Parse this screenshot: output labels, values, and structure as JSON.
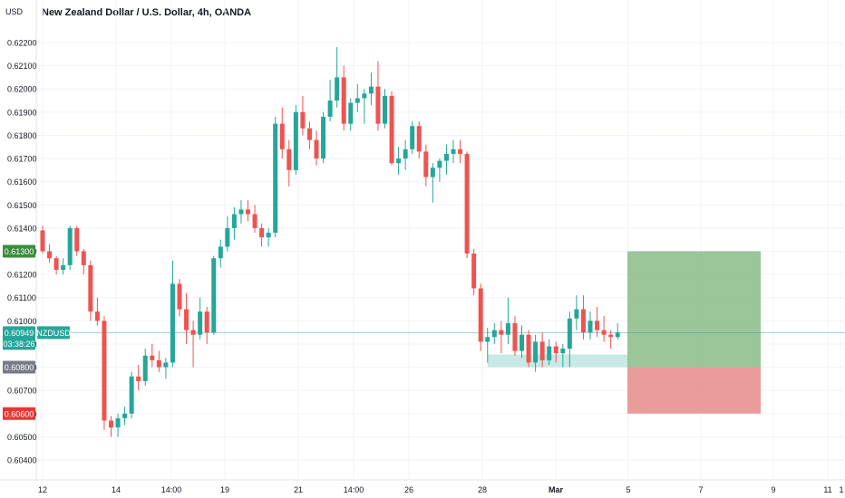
{
  "header": {
    "currency": "USD",
    "title": "New Zealand Dollar / U.S. Dollar, 4h, OANDA"
  },
  "colors": {
    "up": "#26a69a",
    "down": "#ef5350",
    "grid": "#e0e3eb",
    "axis_text": "#131722",
    "profit": "#81b881",
    "loss": "#e58382",
    "demand": "#b2dfdb"
  },
  "price_tags": {
    "target": {
      "label": "0.61300",
      "color": "#388e3c"
    },
    "current": {
      "label": "0.60949",
      "countdown": "03:38:26",
      "symbol": "NZDUSD",
      "color": "#26a69a"
    },
    "entry": {
      "label": "0.60800",
      "color": "#787b86"
    },
    "stop": {
      "label": "0.60600",
      "color": "#e53935"
    }
  },
  "chart_data": {
    "type": "candlestick",
    "title": "New Zealand Dollar / U.S. Dollar, 4h, OANDA",
    "y_ticks": [
      "0.62200",
      "0.62100",
      "0.62000",
      "0.61900",
      "0.61800",
      "0.61700",
      "0.61600",
      "0.61500",
      "0.61400",
      "0.61300",
      "0.61200",
      "0.61100",
      "0.61000",
      "0.60900",
      "0.60800",
      "0.60700",
      "0.60600",
      "0.60500",
      "0.60400"
    ],
    "ylim": [
      0.6035,
      0.6228
    ],
    "x_ticks": [
      "12",
      "14",
      "14:00",
      "19",
      "21",
      "14:00",
      "26",
      "28",
      "Mar",
      "5",
      "7",
      "9",
      "11",
      "1"
    ],
    "current_price": 0.60949,
    "position": {
      "entry": 0.608,
      "target": 0.613,
      "stop": 0.606
    },
    "demand_zone": [
      0.608,
      0.60855
    ],
    "candles": [
      [
        0.6139,
        0.6141,
        0.6129,
        0.613
      ],
      [
        0.613,
        0.6133,
        0.6125,
        0.6127
      ],
      [
        0.6127,
        0.6128,
        0.612,
        0.6122
      ],
      [
        0.6122,
        0.6127,
        0.612,
        0.6124
      ],
      [
        0.6124,
        0.6141,
        0.6122,
        0.614
      ],
      [
        0.614,
        0.6141,
        0.6128,
        0.613
      ],
      [
        0.613,
        0.6131,
        0.612,
        0.6124
      ],
      [
        0.6124,
        0.6126,
        0.61,
        0.6104
      ],
      [
        0.6104,
        0.611,
        0.6098,
        0.61
      ],
      [
        0.61,
        0.6102,
        0.6053,
        0.6057
      ],
      [
        0.6057,
        0.6059,
        0.605,
        0.6054
      ],
      [
        0.6054,
        0.606,
        0.605,
        0.6058
      ],
      [
        0.6058,
        0.6063,
        0.6055,
        0.606
      ],
      [
        0.606,
        0.6078,
        0.6058,
        0.6076
      ],
      [
        0.6076,
        0.6081,
        0.607,
        0.6074
      ],
      [
        0.6074,
        0.6088,
        0.6072,
        0.6085
      ],
      [
        0.6085,
        0.609,
        0.608,
        0.6083
      ],
      [
        0.6083,
        0.6087,
        0.6078,
        0.608
      ],
      [
        0.608,
        0.6084,
        0.6075,
        0.6082
      ],
      [
        0.6082,
        0.6126,
        0.608,
        0.6116
      ],
      [
        0.6116,
        0.6118,
        0.6102,
        0.6105
      ],
      [
        0.6105,
        0.6112,
        0.609,
        0.6096
      ],
      [
        0.6096,
        0.61,
        0.608,
        0.6094
      ],
      [
        0.6094,
        0.611,
        0.6092,
        0.6104
      ],
      [
        0.6104,
        0.6106,
        0.609,
        0.6095
      ],
      [
        0.6095,
        0.6128,
        0.6094,
        0.6127
      ],
      [
        0.6127,
        0.6135,
        0.6123,
        0.6132
      ],
      [
        0.6132,
        0.6145,
        0.613,
        0.614
      ],
      [
        0.614,
        0.6149,
        0.6135,
        0.6146
      ],
      [
        0.6146,
        0.6152,
        0.6142,
        0.6148
      ],
      [
        0.6148,
        0.6152,
        0.6143,
        0.6146
      ],
      [
        0.6146,
        0.615,
        0.6138,
        0.614
      ],
      [
        0.614,
        0.6142,
        0.6132,
        0.6136
      ],
      [
        0.6136,
        0.614,
        0.6132,
        0.6138
      ],
      [
        0.6138,
        0.6188,
        0.6136,
        0.6185
      ],
      [
        0.6185,
        0.6192,
        0.617,
        0.6174
      ],
      [
        0.6174,
        0.6178,
        0.6158,
        0.6165
      ],
      [
        0.6165,
        0.6193,
        0.6163,
        0.619
      ],
      [
        0.619,
        0.6197,
        0.618,
        0.6183
      ],
      [
        0.6183,
        0.6186,
        0.6174,
        0.6178
      ],
      [
        0.6178,
        0.6182,
        0.6167,
        0.617
      ],
      [
        0.617,
        0.619,
        0.6168,
        0.6188
      ],
      [
        0.6188,
        0.6204,
        0.6186,
        0.6195
      ],
      [
        0.6195,
        0.6218,
        0.6192,
        0.6205
      ],
      [
        0.6205,
        0.621,
        0.6182,
        0.6185
      ],
      [
        0.6185,
        0.6196,
        0.6182,
        0.6194
      ],
      [
        0.6194,
        0.6202,
        0.619,
        0.6196
      ],
      [
        0.6196,
        0.62,
        0.6185,
        0.6198
      ],
      [
        0.6198,
        0.6207,
        0.6193,
        0.6201
      ],
      [
        0.6201,
        0.6212,
        0.6182,
        0.6185
      ],
      [
        0.6185,
        0.62,
        0.6183,
        0.6197
      ],
      [
        0.6197,
        0.6199,
        0.6167,
        0.6168
      ],
      [
        0.6168,
        0.6175,
        0.6163,
        0.617
      ],
      [
        0.617,
        0.6178,
        0.6165,
        0.6174
      ],
      [
        0.6174,
        0.6186,
        0.6172,
        0.6184
      ],
      [
        0.6184,
        0.6186,
        0.617,
        0.6173
      ],
      [
        0.6173,
        0.6176,
        0.6158,
        0.6162
      ],
      [
        0.6162,
        0.6168,
        0.6151,
        0.6166
      ],
      [
        0.6166,
        0.617,
        0.616,
        0.6169
      ],
      [
        0.6169,
        0.6176,
        0.6163,
        0.6172
      ],
      [
        0.6172,
        0.6178,
        0.6168,
        0.6174
      ],
      [
        0.6174,
        0.6178,
        0.6168,
        0.6172
      ],
      [
        0.6172,
        0.6173,
        0.6127,
        0.6129
      ],
      [
        0.6129,
        0.6131,
        0.6111,
        0.6114
      ],
      [
        0.6114,
        0.6116,
        0.6087,
        0.6091
      ],
      [
        0.6091,
        0.6097,
        0.6082,
        0.6093
      ],
      [
        0.6093,
        0.6099,
        0.609,
        0.6096
      ],
      [
        0.6096,
        0.61,
        0.6086,
        0.6094
      ],
      [
        0.6094,
        0.611,
        0.609,
        0.6099
      ],
      [
        0.6099,
        0.6102,
        0.6085,
        0.6087
      ],
      [
        0.6087,
        0.6098,
        0.6084,
        0.6094
      ],
      [
        0.6094,
        0.6096,
        0.608,
        0.6082
      ],
      [
        0.6082,
        0.6094,
        0.6078,
        0.6091
      ],
      [
        0.6091,
        0.6095,
        0.608,
        0.6083
      ],
      [
        0.6083,
        0.6092,
        0.6081,
        0.6089
      ],
      [
        0.6089,
        0.6091,
        0.6082,
        0.6086
      ],
      [
        0.6086,
        0.609,
        0.608,
        0.6088
      ],
      [
        0.6088,
        0.6104,
        0.608,
        0.6101
      ],
      [
        0.6101,
        0.6111,
        0.6096,
        0.6105
      ],
      [
        0.6105,
        0.6111,
        0.6092,
        0.6095
      ],
      [
        0.6095,
        0.6104,
        0.6092,
        0.61
      ],
      [
        0.61,
        0.6106,
        0.6093,
        0.6096
      ],
      [
        0.6096,
        0.6102,
        0.6091,
        0.6094
      ],
      [
        0.6094,
        0.6096,
        0.6088,
        0.6093
      ],
      [
        0.6093,
        0.6099,
        0.6092,
        0.6095
      ]
    ]
  }
}
